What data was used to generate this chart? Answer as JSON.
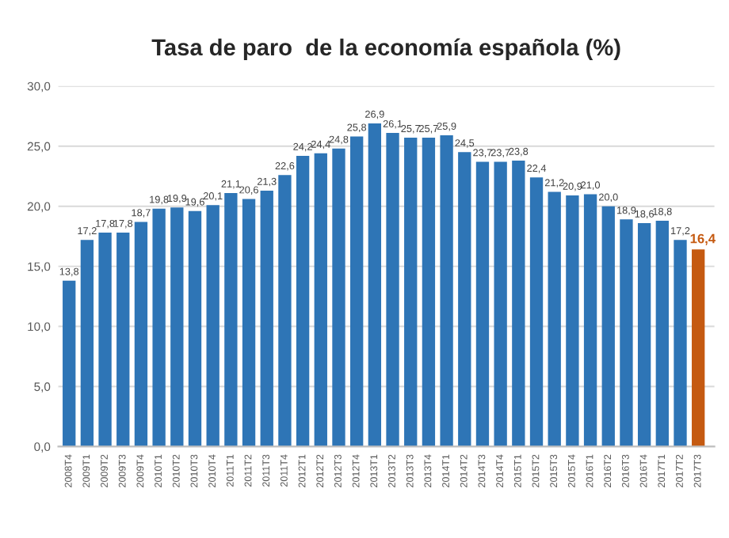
{
  "chart_data": {
    "type": "bar",
    "title": "Tasa de paro  de la economía española (%)",
    "categories": [
      "2008T4",
      "2009T1",
      "2009T2",
      "2009T3",
      "2009T4",
      "2010T1",
      "2010T2",
      "2010T3",
      "2010T4",
      "2011T1",
      "2011T2",
      "2011T3",
      "2011T4",
      "2012T1",
      "2012T2",
      "2012T3",
      "2012T4",
      "2013T1",
      "2013T2",
      "2013T3",
      "2013T4",
      "2014T1",
      "2014T2",
      "2014T3",
      "2014T4",
      "2015T1",
      "2015T2",
      "2015T3",
      "2015T4",
      "2016T1",
      "2016T2",
      "2016T3",
      "2016T4",
      "2017T1",
      "2017T2",
      "2017T3"
    ],
    "values": [
      13.8,
      17.2,
      17.8,
      17.8,
      18.7,
      19.8,
      19.9,
      19.6,
      20.1,
      21.1,
      20.6,
      21.3,
      22.6,
      24.2,
      24.4,
      24.8,
      25.8,
      26.9,
      26.1,
      25.7,
      25.7,
      25.9,
      24.5,
      23.7,
      23.7,
      23.8,
      22.4,
      21.2,
      20.9,
      21.0,
      20.0,
      18.9,
      18.6,
      18.8,
      17.2,
      16.4
    ],
    "value_labels": [
      "13,8",
      "17,2",
      "17,8",
      "17,8",
      "18,7",
      "19,8",
      "19,9",
      "19,6",
      "20,1",
      "21,1",
      "20,6",
      "21,3",
      "22,6",
      "24,2",
      "24,4",
      "24,8",
      "25,8",
      "26,9",
      "26,1",
      "25,7",
      "25,7",
      "25,9",
      "24,5",
      "23,7",
      "23,7",
      "23,8",
      "22,4",
      "21,2",
      "20,9",
      "21,0",
      "20,0",
      "18,9",
      "18,6",
      "18,8",
      "17,2",
      "16,4"
    ],
    "colors": [
      "#2e75b6",
      "#2e75b6",
      "#2e75b6",
      "#2e75b6",
      "#2e75b6",
      "#2e75b6",
      "#2e75b6",
      "#2e75b6",
      "#2e75b6",
      "#2e75b6",
      "#2e75b6",
      "#2e75b6",
      "#2e75b6",
      "#2e75b6",
      "#2e75b6",
      "#2e75b6",
      "#2e75b6",
      "#2e75b6",
      "#2e75b6",
      "#2e75b6",
      "#2e75b6",
      "#2e75b6",
      "#2e75b6",
      "#2e75b6",
      "#2e75b6",
      "#2e75b6",
      "#2e75b6",
      "#2e75b6",
      "#2e75b6",
      "#2e75b6",
      "#2e75b6",
      "#2e75b6",
      "#2e75b6",
      "#2e75b6",
      "#2e75b6",
      "#c55a11"
    ],
    "ylim": [
      0,
      30
    ],
    "yticks": [
      {
        "value": 0,
        "label": "0,0"
      },
      {
        "value": 5,
        "label": "5,0"
      },
      {
        "value": 10,
        "label": "10,0"
      },
      {
        "value": 15,
        "label": "15,0"
      },
      {
        "value": 20,
        "label": "20,0"
      },
      {
        "value": 25,
        "label": "25,0"
      },
      {
        "value": 30,
        "label": "30,0"
      }
    ],
    "grid": "y"
  }
}
